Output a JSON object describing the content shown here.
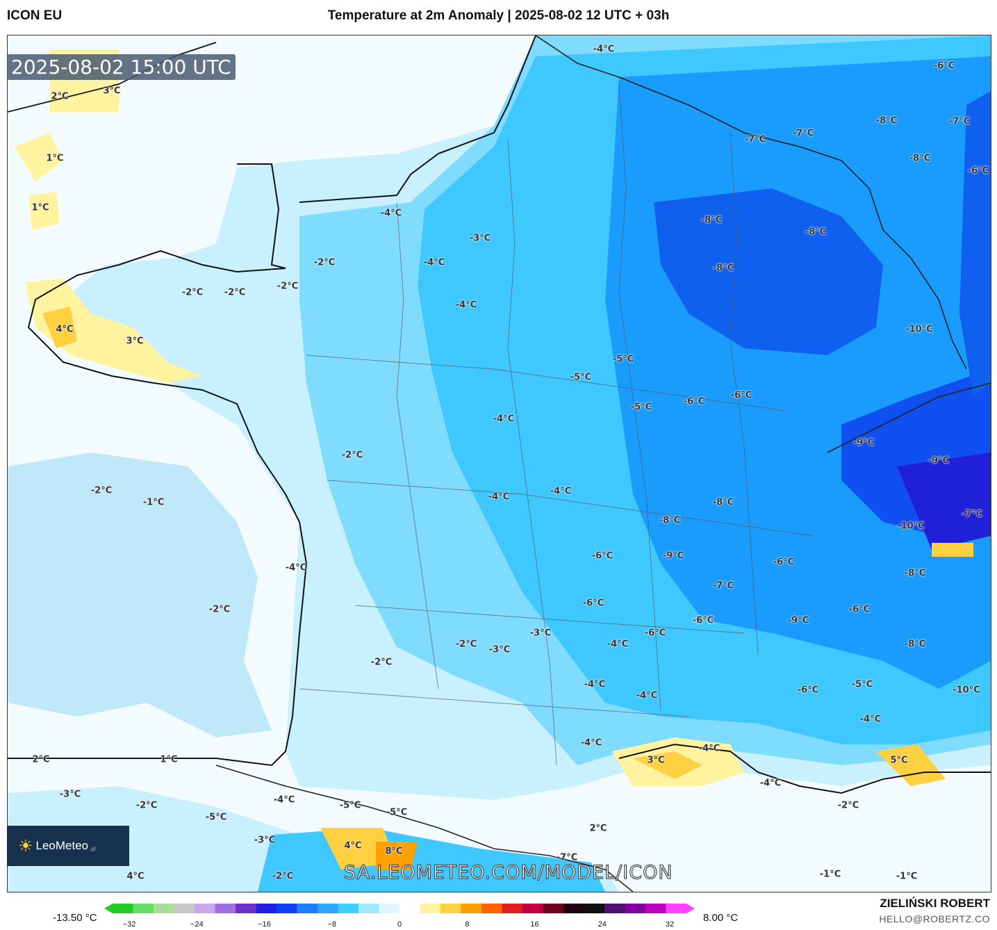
{
  "header": {
    "model": "ICON EU",
    "title": "Temperature at 2m Anomaly | 2025-08-02 12 UTC + 03h"
  },
  "timestamp": "2025-08-02 15:00 UTC",
  "logo": {
    "brand": "LeoMeteo",
    "suffix": ".pl"
  },
  "watermark": "SA.LEOMETEO.COM/MODEL/ICON",
  "legend": {
    "min_label": "-13.50 °C",
    "max_label": "8.00 °C",
    "ticks": [
      "−32",
      "−24",
      "−16",
      "−8",
      "0",
      "8",
      "16",
      "24",
      "32"
    ],
    "colors": [
      "#22cc22",
      "#66dd66",
      "#aadd99",
      "#c8c8c8",
      "#c8a8e8",
      "#a070e0",
      "#7030d0",
      "#2020e0",
      "#1040f0",
      "#1a80ff",
      "#2aa8ff",
      "#40d0ff",
      "#a0e8ff",
      "#dff6ff",
      "#ffffff",
      "#fff3a0",
      "#ffd040",
      "#ffa000",
      "#ff6000",
      "#e02020",
      "#c00040",
      "#700020",
      "#200010",
      "#101010",
      "#501070",
      "#8000a0",
      "#c000c0",
      "#ff40ff"
    ]
  },
  "author": {
    "name": "ZIELIŃSKI ROBERT",
    "email": "HELLO@ROBERTZ.CO"
  },
  "map_labels": [
    "-4°C",
    "-6°C",
    "2°C",
    "3°C",
    "1°C",
    "1°C",
    "-7°C",
    "-7°C",
    "-8°C",
    "-7°C",
    "-8°C",
    "-6°C",
    "-4°C",
    "-3°C",
    "-4°C",
    "-2°C",
    "-8°C",
    "-8°C",
    "-8°C",
    "-2°C",
    "-2°C",
    "-2°C",
    "4°C",
    "3°C",
    "-4°C",
    "-10°C",
    "-5°C",
    "-5°C",
    "-5°C",
    "-6°C",
    "-6°C",
    "-4°C",
    "-9°C",
    "-2°C",
    "-9°C",
    "-2°C",
    "-1°C",
    "-4°C",
    "-4°C",
    "-8°C",
    "-8°C",
    "-7°C",
    "-10°C",
    "-4°C",
    "-6°C",
    "-9°C",
    "-6°C",
    "-8°C",
    "-7°C",
    "-6°C",
    "-2°C",
    "-6°C",
    "-7°C",
    "-9°C",
    "-6°C",
    "-3°C",
    "-4°C",
    "-6°C",
    "-2°C",
    "-3°C",
    "-8°C",
    "-2°C",
    "-4°C",
    "-4°C",
    "-6°C",
    "-5°C",
    "-10°C",
    "-4°C",
    "-4°C",
    "3°C",
    "-4°C",
    "5°C",
    "2°C",
    "1°C",
    "-3°C",
    "-2°C",
    "-4°C",
    "-5°C",
    "-5°C",
    "-4°C",
    "-2°C",
    "-5°C",
    "-3°C",
    "2°C",
    "4°C",
    "8°C",
    "-7°C",
    "4°C",
    "-2°C",
    "-1°C",
    "-1°C"
  ]
}
